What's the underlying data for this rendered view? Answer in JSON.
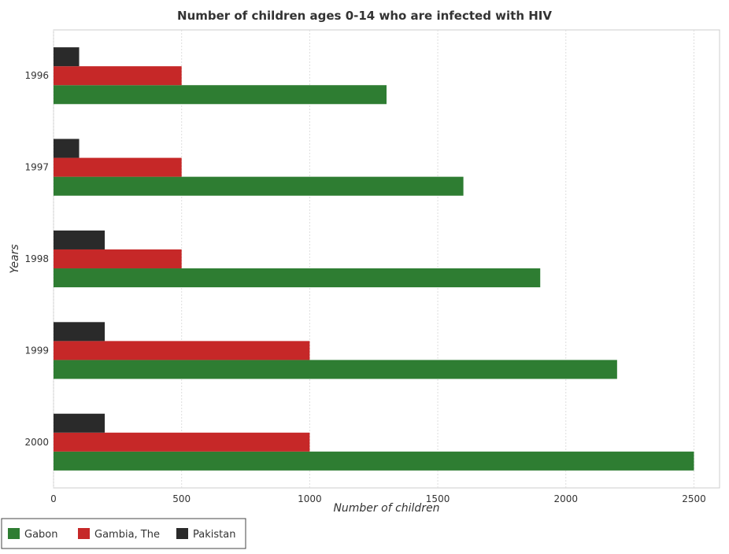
{
  "chart_data": {
    "type": "bar",
    "orientation": "horizontal",
    "title": "Number of children ages 0-14 who are infected with HIV",
    "xlabel": "Number of children",
    "ylabel": "Years",
    "categories": [
      "1996",
      "1997",
      "1998",
      "1999",
      "2000"
    ],
    "xlim": [
      0,
      2600
    ],
    "xticks": [
      0,
      500,
      1000,
      1500,
      2000,
      2500
    ],
    "xtick_labels": [
      "0",
      "500",
      "1000",
      "1500",
      "2000",
      "2500"
    ],
    "grid": true,
    "legend_position": "bottom-left",
    "series": [
      {
        "name": "Gabon",
        "color": "#2e7d32",
        "values": [
          1300,
          1600,
          1900,
          2200,
          2500
        ]
      },
      {
        "name": "Gambia, The",
        "color": "#c62828",
        "values": [
          500,
          500,
          500,
          1000,
          1000
        ]
      },
      {
        "name": "Pakistan",
        "color": "#2a2a2a",
        "values": [
          100,
          100,
          200,
          200,
          200
        ]
      }
    ]
  }
}
